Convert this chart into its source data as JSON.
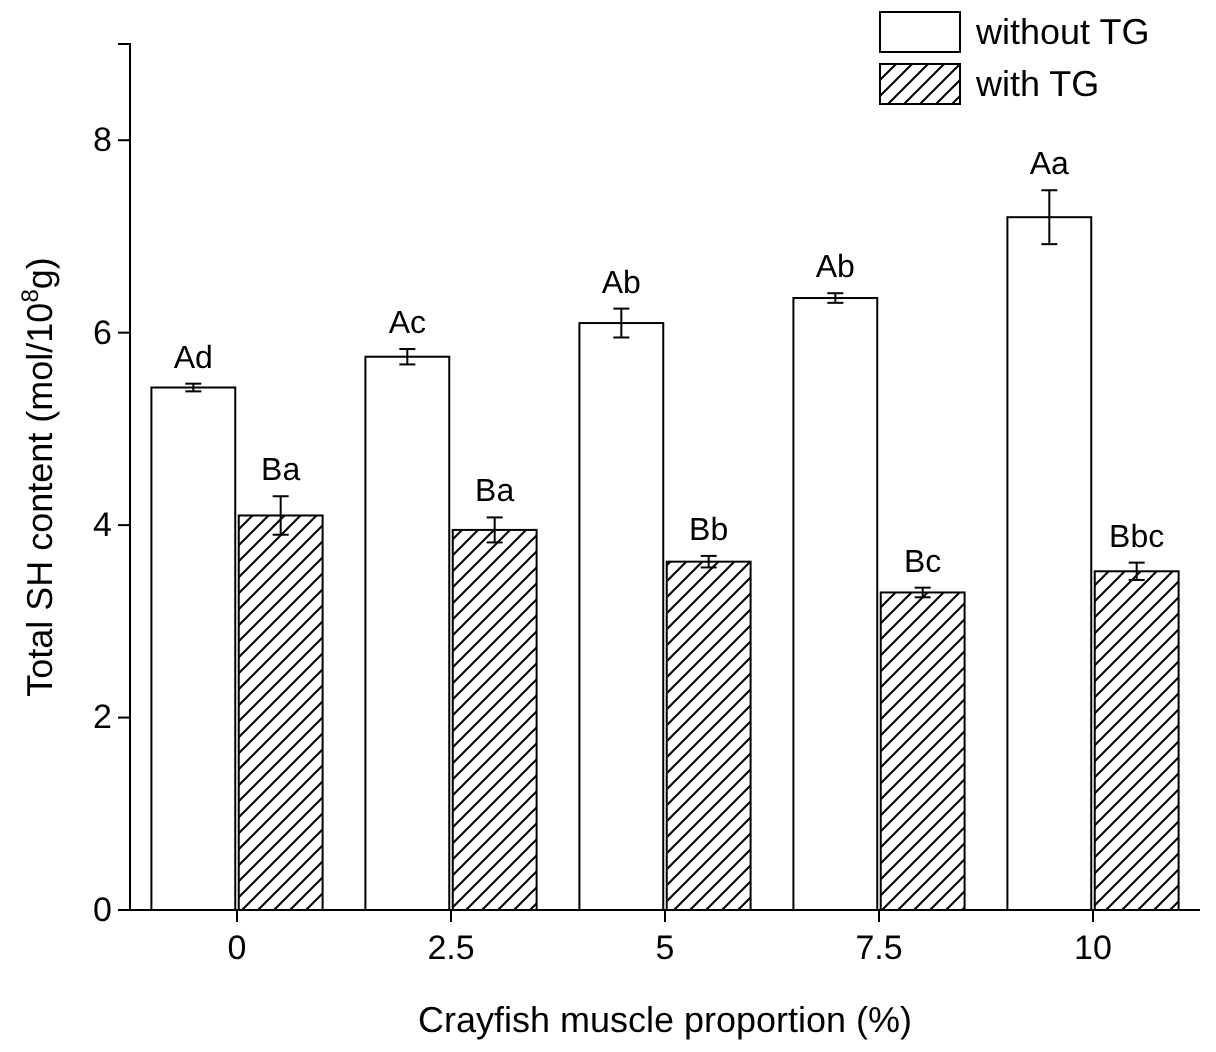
{
  "chart_data": {
    "type": "bar",
    "xlabel": "Crayfish muscle proportion  (%)",
    "ylabel": "Total SH content (mol/10$^{8}$g)",
    "categories": [
      "0",
      "2.5",
      "5",
      "7.5",
      "10"
    ],
    "series": [
      {
        "name": "without TG",
        "color": "#ffffff",
        "values": [
          5.43,
          5.75,
          6.1,
          6.36,
          7.2
        ],
        "errors": [
          0.04,
          0.08,
          0.15,
          0.05,
          0.28
        ],
        "value_labels": [
          "Ad",
          "Ac",
          "Ab",
          "Ab",
          "Aa"
        ]
      },
      {
        "name": "with TG",
        "color": "#000000",
        "values": [
          4.1,
          3.95,
          3.62,
          3.3,
          3.52
        ],
        "errors": [
          0.2,
          0.13,
          0.06,
          0.05,
          0.09
        ],
        "value_labels": [
          "Ba",
          "Ba",
          "Bb",
          "Bc",
          "Bbc"
        ]
      }
    ],
    "ylim": [
      0,
      9
    ],
    "yticks": [
      0,
      2,
      4,
      6,
      8
    ],
    "grid": false,
    "legend": "top right"
  }
}
